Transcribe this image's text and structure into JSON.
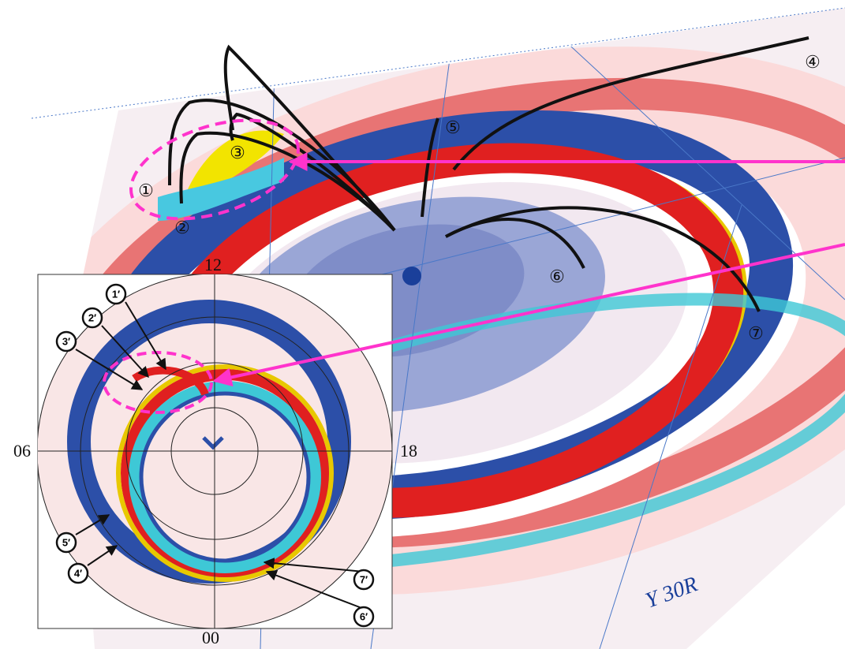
{
  "main_labels": {
    "p1": "①",
    "p2": "②",
    "p3": "③",
    "p4": "④",
    "p5": "⑤",
    "p6": "⑥",
    "p7": "⑦"
  },
  "axis_label": "Y  30R",
  "inset": {
    "clock": {
      "top": "12",
      "left": "06",
      "right": "18",
      "bottom": "00"
    },
    "markers": [
      "1′",
      "2′",
      "3′",
      "4′",
      "5′",
      "6′",
      "7′"
    ]
  }
}
